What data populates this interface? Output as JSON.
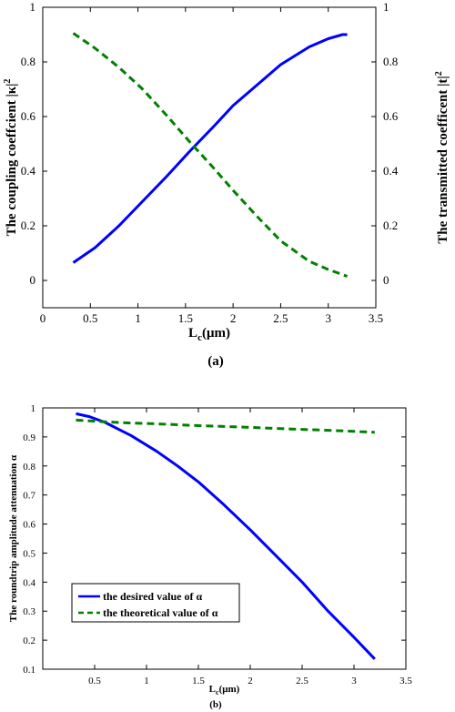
{
  "chart_data": [
    {
      "type": "line",
      "panel_label": "(a)",
      "xlabel_main": "L",
      "xlabel_sub": "c",
      "xlabel_unit": "(μm)",
      "ylabel_left": "The coupling coeffcient |κ|",
      "ylabel_left_sup": "2",
      "ylabel_right": "The transmitted coefficent |t|",
      "ylabel_right_sup": "2",
      "xlim": [
        0,
        3.5
      ],
      "ylim": [
        -0.1,
        1
      ],
      "x_ticks": [
        0,
        0.5,
        1,
        1.5,
        2,
        2.5,
        3,
        3.5
      ],
      "x_tick_labels": [
        "0",
        "0.5",
        "1",
        "1.5",
        "2",
        "2.5",
        "3",
        "3.5"
      ],
      "y_ticks": [
        0,
        0.2,
        0.4,
        0.6,
        0.8,
        1
      ],
      "y_tick_labels": [
        "0",
        "0.2",
        "0.4",
        "0.6",
        "0.8",
        "1"
      ],
      "series": [
        {
          "color": "#0000ff",
          "dash": "solid",
          "x": [
            0.32,
            0.55,
            0.8,
            1.05,
            1.3,
            1.55,
            1.8,
            2.0,
            2.25,
            2.5,
            2.8,
            3.0,
            3.15,
            3.2
          ],
          "y": [
            0.065,
            0.12,
            0.2,
            0.29,
            0.38,
            0.475,
            0.565,
            0.64,
            0.715,
            0.79,
            0.855,
            0.885,
            0.9,
            0.9
          ]
        },
        {
          "color": "#008000",
          "dash": "dashed",
          "x": [
            0.32,
            0.55,
            0.8,
            1.05,
            1.3,
            1.55,
            1.8,
            2.0,
            2.25,
            2.5,
            2.8,
            3.0,
            3.2
          ],
          "y": [
            0.905,
            0.85,
            0.78,
            0.7,
            0.605,
            0.505,
            0.41,
            0.33,
            0.235,
            0.145,
            0.07,
            0.04,
            0.015
          ]
        }
      ]
    },
    {
      "type": "line",
      "panel_label": "(b)",
      "xlabel_main": "L",
      "xlabel_sub": "c",
      "xlabel_unit": "(μm)",
      "ylabel": "The roundtrip amplitude attenuation α",
      "xlim": [
        0,
        3.5
      ],
      "ylim": [
        0.1,
        1
      ],
      "x_ticks": [
        0.5,
        1,
        1.5,
        2,
        2.5,
        3,
        3.5
      ],
      "x_tick_labels": [
        "0.5",
        "1",
        "1.5",
        "2",
        "2.5",
        "3",
        "3.5"
      ],
      "y_ticks": [
        0.1,
        0.2,
        0.3,
        0.4,
        0.5,
        0.6,
        0.7,
        0.8,
        0.9,
        1
      ],
      "y_tick_labels": [
        "0.1",
        "0.2",
        "0.3",
        "0.4",
        "0.5",
        "0.6",
        "0.7",
        "0.8",
        "0.9",
        "1"
      ],
      "legend": "lower-left",
      "series": [
        {
          "name": "the desired value of α",
          "color": "#0000ff",
          "dash": "solid",
          "x": [
            0.32,
            0.45,
            0.6,
            0.85,
            1.1,
            1.3,
            1.5,
            1.75,
            2.0,
            2.25,
            2.5,
            2.75,
            3.0,
            3.2
          ],
          "y": [
            0.98,
            0.97,
            0.95,
            0.905,
            0.85,
            0.8,
            0.745,
            0.665,
            0.58,
            0.49,
            0.4,
            0.3,
            0.21,
            0.135
          ]
        },
        {
          "name": "the theoretical value of α",
          "color": "#008000",
          "dash": "dashed",
          "x": [
            0.32,
            0.6,
            0.85,
            1.1,
            1.3,
            1.5,
            1.75,
            2.0,
            2.25,
            2.5,
            2.75,
            3.0,
            3.2
          ],
          "y": [
            0.958,
            0.952,
            0.948,
            0.945,
            0.942,
            0.939,
            0.936,
            0.933,
            0.929,
            0.926,
            0.923,
            0.919,
            0.916
          ]
        }
      ]
    }
  ]
}
